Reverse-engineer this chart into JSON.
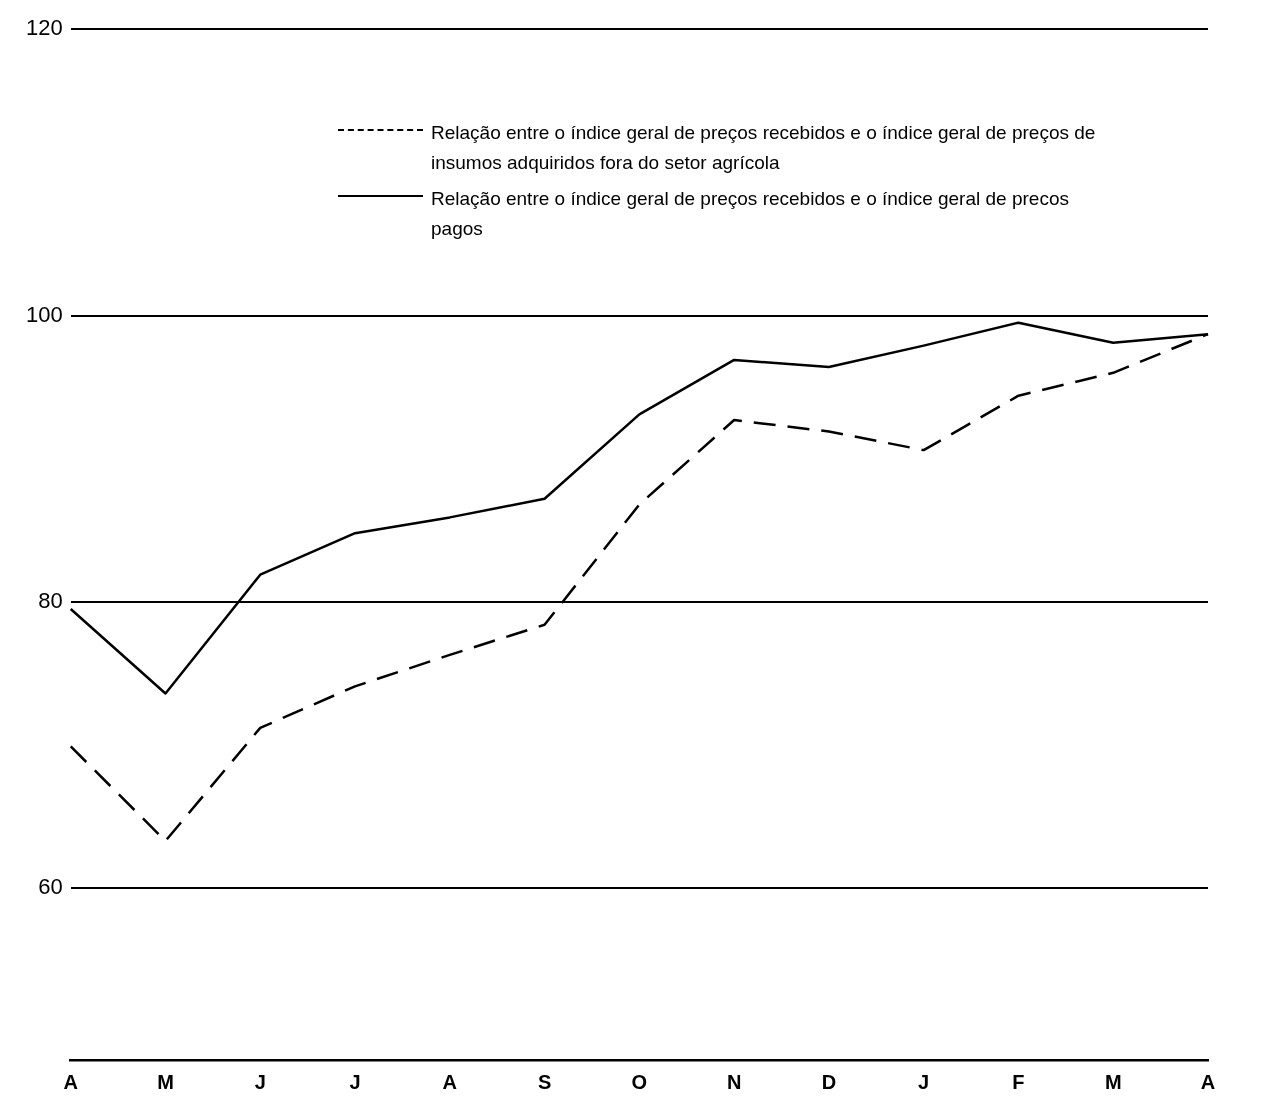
{
  "chart_data": {
    "type": "line",
    "categories": [
      "A",
      "M",
      "J",
      "J",
      "A",
      "S",
      "O",
      "N",
      "D",
      "J",
      "F",
      "M",
      "A"
    ],
    "series": [
      {
        "name": "Relação entre o índice geral de preços recebidos e o índice geral de preços de insumos adquiridos fora do setor agrícola",
        "color": "#000000",
        "line_style": "dashed",
        "values": [
          69.9,
          63.3,
          71.2,
          74.1,
          76.3,
          78.4,
          86.8,
          92.7,
          91.9,
          90.6,
          94.4,
          96.0,
          98.7
        ]
      },
      {
        "name": "Relação entre o índice geral de preços recebidos e o índice geral de precos pagos",
        "color": "#000000",
        "line_style": "solid",
        "values": [
          79.5,
          73.6,
          81.9,
          84.8,
          85.9,
          87.2,
          93.1,
          96.9,
          96.4,
          97.9,
          99.5,
          98.1,
          98.7
        ]
      }
    ],
    "ylim": [
      48,
      120
    ],
    "yticks": [
      60,
      80,
      100,
      120
    ],
    "grid": "y",
    "legend": "top",
    "marker": "none"
  }
}
